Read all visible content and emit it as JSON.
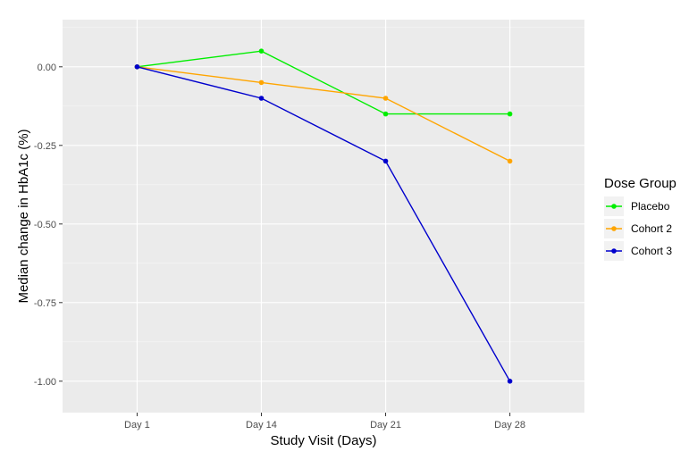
{
  "chart_data": {
    "type": "line",
    "title": "",
    "xlabel": "Study Visit (Days)",
    "ylabel": "Median change in HbA1c (%)",
    "categories": [
      "Day 1",
      "Day 14",
      "Day 21",
      "Day 28"
    ],
    "ylim": [
      -1.1,
      0.15
    ],
    "yticks": [
      0.0,
      -0.25,
      -0.5,
      -0.75,
      -1.0
    ],
    "ytick_labels": [
      "0.00",
      "-0.25",
      "-0.50",
      "-0.75",
      "-1.00"
    ],
    "grid": true,
    "legend": {
      "title": "Dose Group",
      "position": "right"
    },
    "series": [
      {
        "name": "Placebo",
        "color": "#00ee00",
        "values": [
          0.0,
          0.05,
          -0.15,
          -0.15
        ]
      },
      {
        "name": "Cohort 2",
        "color": "#ffa500",
        "values": [
          0.0,
          -0.05,
          -0.1,
          -0.3
        ]
      },
      {
        "name": "Cohort 3",
        "color": "#0000cd",
        "values": [
          0.0,
          -0.1,
          -0.3,
          -1.0
        ]
      }
    ]
  }
}
